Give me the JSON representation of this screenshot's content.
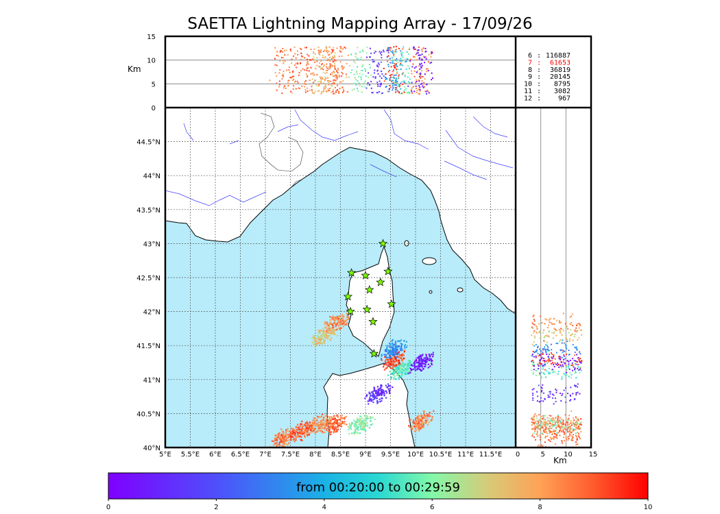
{
  "title": "SAETTA Lightning Mapping Array - 17/09/26",
  "colorbar_caption": "from 00:20:00 to 00:29:59",
  "colors": {
    "sea": "#b8ecfa",
    "land": "#ffffff",
    "rivers": "#3b3bff",
    "coast": "#000000",
    "station_fill": "#7cfc00",
    "highlight_row": "#ff0000"
  },
  "chart_data": {
    "type": "scatter",
    "map": {
      "lon_ticks": [
        "5°E",
        "5.5°E",
        "6°E",
        "6.5°E",
        "7°E",
        "7.5°E",
        "8°E",
        "8.5°E",
        "9°E",
        "9.5°E",
        "10°E",
        "10.5°E",
        "11°E",
        "11.5°E"
      ],
      "lat_ticks": [
        "40°N",
        "40.5°N",
        "41°N",
        "41.5°N",
        "42°N",
        "42.5°N",
        "43°N",
        "43.5°N",
        "44°N",
        "44.5°N"
      ],
      "lon_range": [
        5,
        12
      ],
      "lat_range": [
        40,
        45
      ],
      "grid": true,
      "stations": [
        {
          "lon": 9.35,
          "lat": 43.0
        },
        {
          "lon": 8.72,
          "lat": 42.57
        },
        {
          "lon": 9.0,
          "lat": 42.53
        },
        {
          "lon": 9.45,
          "lat": 42.59
        },
        {
          "lon": 9.3,
          "lat": 42.43
        },
        {
          "lon": 9.08,
          "lat": 42.32
        },
        {
          "lon": 8.65,
          "lat": 42.22
        },
        {
          "lon": 9.52,
          "lat": 42.11
        },
        {
          "lon": 8.7,
          "lat": 42.0
        },
        {
          "lon": 9.03,
          "lat": 42.03
        },
        {
          "lon": 9.15,
          "lat": 41.85
        },
        {
          "lon": 9.17,
          "lat": 41.38
        }
      ]
    },
    "altitude_lon_panel": {
      "ylabel": "Km",
      "yticks": [
        "0",
        "5",
        "10",
        "15"
      ],
      "ylim": [
        0,
        15
      ]
    },
    "altitude_lat_panel": {
      "xlabel": "Km",
      "xticks": [
        "0",
        "5",
        "10",
        "15"
      ],
      "xlim": [
        0,
        15
      ]
    },
    "colorbar": {
      "ticks": [
        "0",
        "2",
        "4",
        "6",
        "8",
        "10"
      ],
      "range": [
        0,
        10
      ]
    },
    "station_counts": [
      {
        "stations": "6",
        "sep": ":",
        "count": "116887"
      },
      {
        "stations": "7",
        "sep": ":",
        "count": "61653",
        "highlight": true
      },
      {
        "stations": "8",
        "sep": ":",
        "count": "36819"
      },
      {
        "stations": "9",
        "sep": ":",
        "count": "20145"
      },
      {
        "stations": "10",
        "sep": ":",
        "count": "8795"
      },
      {
        "stations": "11",
        "sep": ":",
        "count": "3082"
      },
      {
        "stations": "12",
        "sep": ":",
        "count": "967"
      }
    ],
    "source_clusters": [
      {
        "lon": 8.35,
        "lat": 40.35,
        "t": 8.8
      },
      {
        "lon": 8.05,
        "lat": 40.35,
        "t": 8.3
      },
      {
        "lon": 7.35,
        "lat": 40.15,
        "t": 8.6
      },
      {
        "lon": 7.7,
        "lat": 40.25,
        "t": 8.9
      },
      {
        "lon": 9.55,
        "lat": 41.3,
        "t": 9.2
      },
      {
        "lon": 9.55,
        "lat": 41.45,
        "t": 3.2
      },
      {
        "lon": 9.7,
        "lat": 41.15,
        "t": 5.6
      },
      {
        "lon": 8.4,
        "lat": 41.85,
        "t": 8.4
      },
      {
        "lon": 8.15,
        "lat": 41.65,
        "t": 7.2
      },
      {
        "lon": 9.25,
        "lat": 40.8,
        "t": 1.3
      },
      {
        "lon": 10.1,
        "lat": 40.4,
        "t": 8.5
      },
      {
        "lon": 10.1,
        "lat": 41.25,
        "t": 0.5
      },
      {
        "lon": 8.9,
        "lat": 40.35,
        "t": 6.0
      }
    ]
  }
}
